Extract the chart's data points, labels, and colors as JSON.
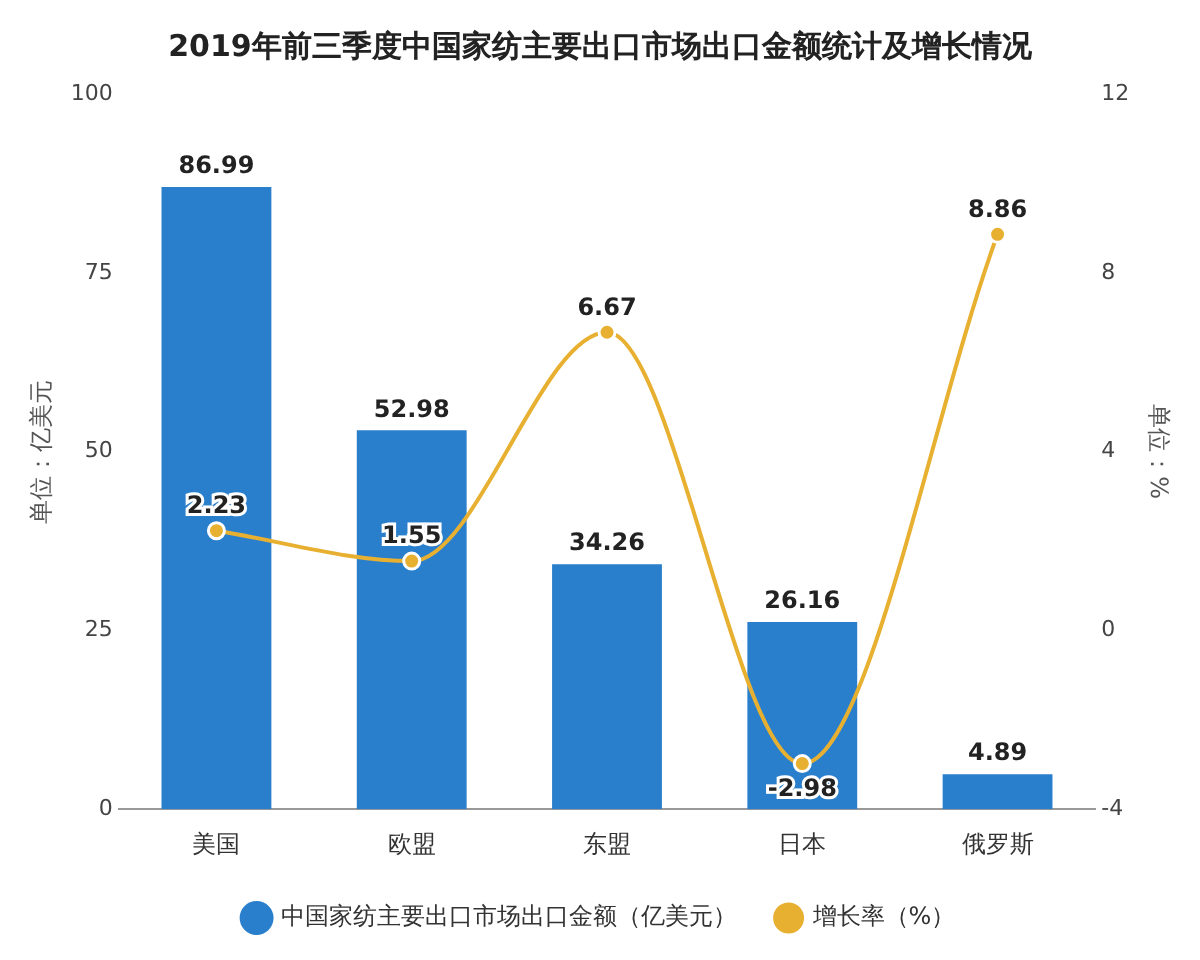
{
  "chart_data": {
    "type": "bar",
    "title": "2019年前三季度中国家纺主要出口市场出口金额统计及增长情况",
    "categories": [
      "美国",
      "欧盟",
      "东盟",
      "日本",
      "俄罗斯"
    ],
    "series": [
      {
        "name": "中国家纺主要出口市场出口金额（亿美元）",
        "color": "#2a7fcc",
        "values": [
          86.99,
          52.98,
          34.26,
          26.16,
          4.89
        ]
      },
      {
        "name": "增长率（%）",
        "type": "line",
        "axis": "y2",
        "color": "#e8b030",
        "values": [
          2.23,
          1.55,
          6.67,
          -2.98,
          8.86
        ]
      }
    ],
    "ylabel": "单位：亿美元",
    "y2label": "单位：%",
    "ylim": [
      0,
      100
    ],
    "yticks": [
      0,
      25,
      50,
      75,
      100
    ],
    "y2lim": [
      -4,
      12
    ],
    "y2ticks": [
      -4,
      0,
      4,
      8,
      12
    ],
    "data_labels": true,
    "legend": "bottom",
    "grid": false,
    "marker": "circle",
    "line_style": "solid"
  }
}
